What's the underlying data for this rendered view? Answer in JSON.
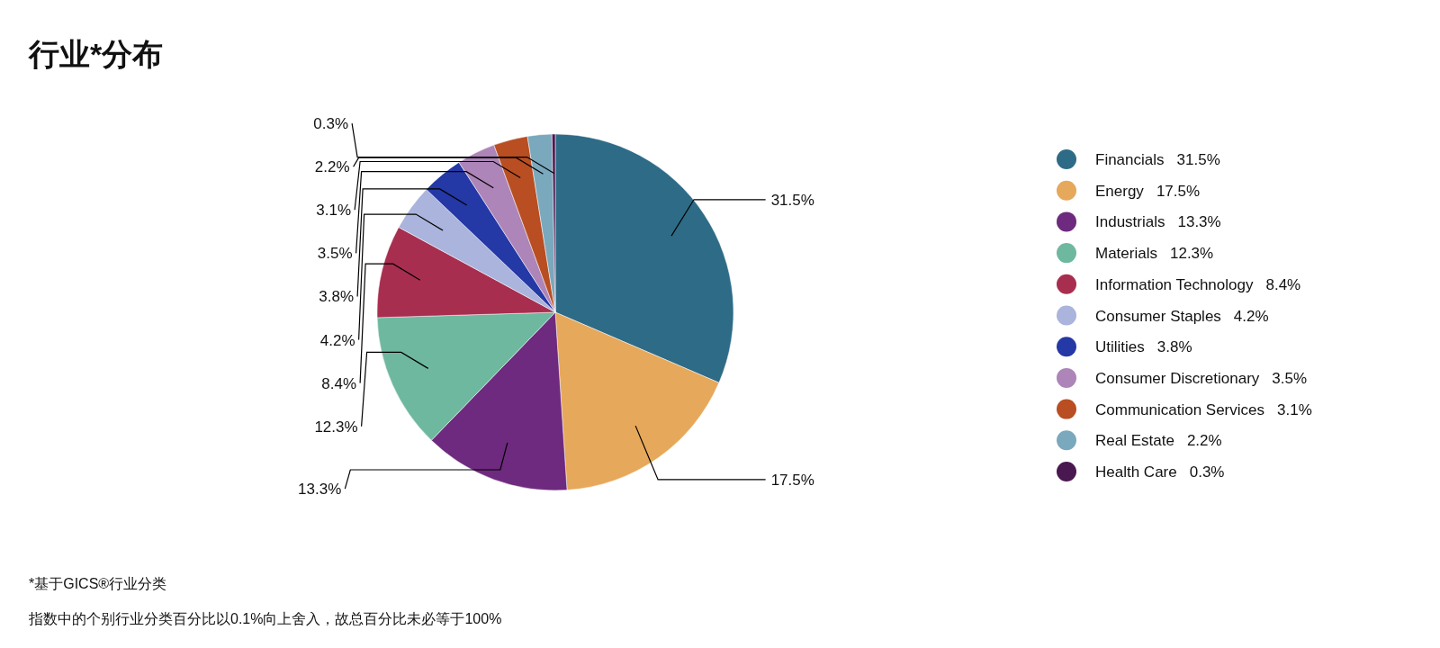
{
  "chart_data": {
    "type": "pie",
    "title": "行业*分布",
    "categories": [
      "Financials",
      "Energy",
      "Industrials",
      "Materials",
      "Information Technology",
      "Consumer Staples",
      "Utilities",
      "Consumer Discretionary",
      "Communication Services",
      "Real Estate",
      "Health Care"
    ],
    "values": [
      31.5,
      17.5,
      13.3,
      12.3,
      8.4,
      4.2,
      3.8,
      3.5,
      3.1,
      2.2,
      0.3
    ],
    "colors": [
      "#2e6b87",
      "#e6a85a",
      "#6e2a7e",
      "#6fb8a0",
      "#a82e4f",
      "#aab4dc",
      "#2438a6",
      "#ad85b8",
      "#b84e22",
      "#7aa8bc",
      "#4a1850"
    ],
    "value_labels": [
      "31.5%",
      "17.5%",
      "13.3%",
      "12.3%",
      "8.4%",
      "4.2%",
      "3.8%",
      "3.5%",
      "3.1%",
      "2.2%",
      "0.3%"
    ],
    "legend": "right",
    "annotations": [
      "*基于GICS®行业分类",
      "指数中的个别行业分类百分比以0.1%向上舍入，故总百分比未必等于100%"
    ]
  }
}
